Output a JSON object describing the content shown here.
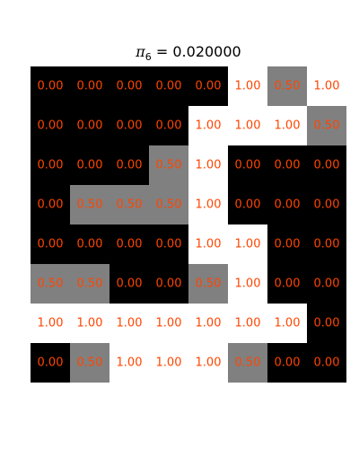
{
  "chart_data": {
    "type": "heatmap",
    "title": {
      "symbol": "π",
      "subscript": "6",
      "rest": " = 0.020000"
    },
    "rows": 8,
    "cols": 8,
    "grid": false,
    "colormap": "gray",
    "vmin": 0,
    "vmax": 1,
    "label_color": "#ff4500",
    "values": [
      [
        0.0,
        0.0,
        0.0,
        0.0,
        0.0,
        1.0,
        0.5,
        1.0
      ],
      [
        0.0,
        0.0,
        0.0,
        0.0,
        1.0,
        1.0,
        1.0,
        0.5
      ],
      [
        0.0,
        0.0,
        0.0,
        0.5,
        1.0,
        0.0,
        0.0,
        0.0
      ],
      [
        0.0,
        0.5,
        0.5,
        0.5,
        1.0,
        0.0,
        0.0,
        0.0
      ],
      [
        0.0,
        0.0,
        0.0,
        0.0,
        1.0,
        1.0,
        0.0,
        0.0
      ],
      [
        0.5,
        0.5,
        0.0,
        0.0,
        0.5,
        1.0,
        0.0,
        0.0
      ],
      [
        1.0,
        1.0,
        1.0,
        1.0,
        1.0,
        1.0,
        1.0,
        0.0
      ],
      [
        0.0,
        0.5,
        1.0,
        1.0,
        1.0,
        0.5,
        0.0,
        0.0
      ]
    ],
    "labels": [
      [
        "0.00",
        "0.00",
        "0.00",
        "0.00",
        "0.00",
        "1.00",
        "0.50",
        "1.00"
      ],
      [
        "0.00",
        "0.00",
        "0.00",
        "0.00",
        "1.00",
        "1.00",
        "1.00",
        "0.50"
      ],
      [
        "0.00",
        "0.00",
        "0.00",
        "0.50",
        "1.00",
        "0.00",
        "0.00",
        "0.00"
      ],
      [
        "0.00",
        "0.50",
        "0.50",
        "0.50",
        "1.00",
        "0.00",
        "0.00",
        "0.00"
      ],
      [
        "0.00",
        "0.00",
        "0.00",
        "0.00",
        "1.00",
        "1.00",
        "0.00",
        "0.00"
      ],
      [
        "0.50",
        "0.50",
        "0.00",
        "0.00",
        "0.50",
        "1.00",
        "0.00",
        "0.00"
      ],
      [
        "1.00",
        "1.00",
        "1.00",
        "1.00",
        "1.00",
        "1.00",
        "1.00",
        "0.00"
      ],
      [
        "0.00",
        "0.50",
        "1.00",
        "1.00",
        "1.00",
        "0.50",
        "0.00",
        "0.00"
      ]
    ]
  }
}
